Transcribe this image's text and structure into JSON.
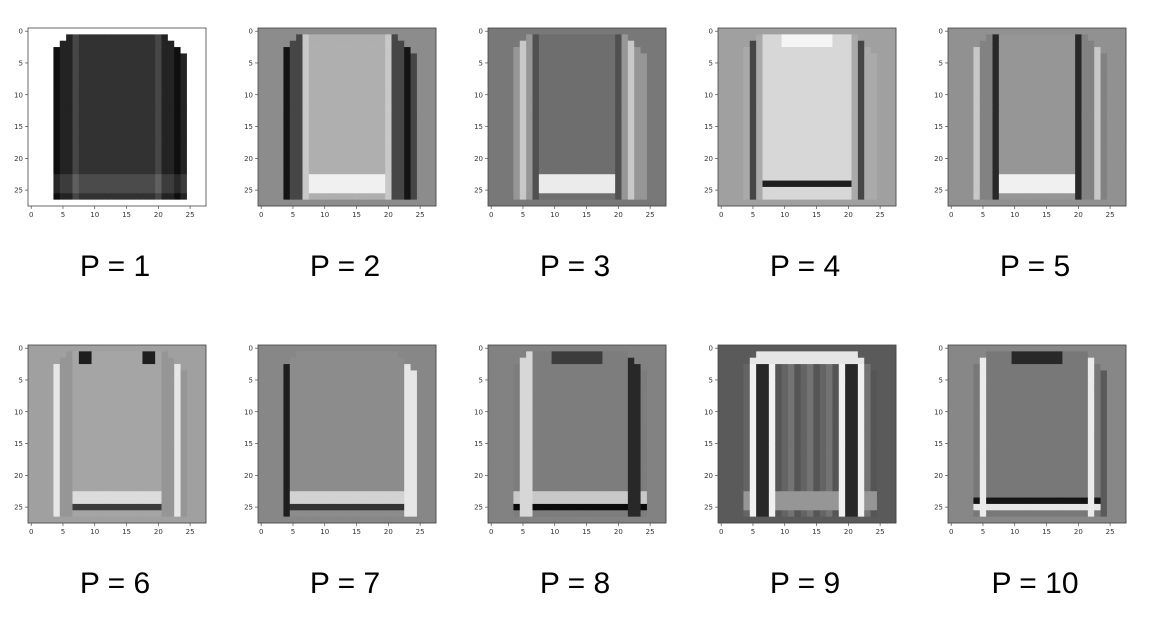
{
  "figure": {
    "panels": [
      {
        "caption": "P = 1",
        "style": "mean"
      },
      {
        "caption": "P = 2",
        "style": "pc2"
      },
      {
        "caption": "P = 3",
        "style": "pc3"
      },
      {
        "caption": "P = 4",
        "style": "pc4"
      },
      {
        "caption": "P = 5",
        "style": "pc5"
      },
      {
        "caption": "P = 6",
        "style": "pc6"
      },
      {
        "caption": "P = 7",
        "style": "pc7"
      },
      {
        "caption": "P = 8",
        "style": "pc8"
      },
      {
        "caption": "P = 9",
        "style": "pc9"
      },
      {
        "caption": "P = 10",
        "style": "pc10"
      }
    ],
    "x_ticks": [
      "0",
      "5",
      "10",
      "15",
      "20",
      "25"
    ],
    "y_ticks": [
      "0",
      "5",
      "10",
      "15",
      "20",
      "25"
    ],
    "colors": {
      "background_gray": "#8c8c8c",
      "frame": "#444444"
    }
  }
}
